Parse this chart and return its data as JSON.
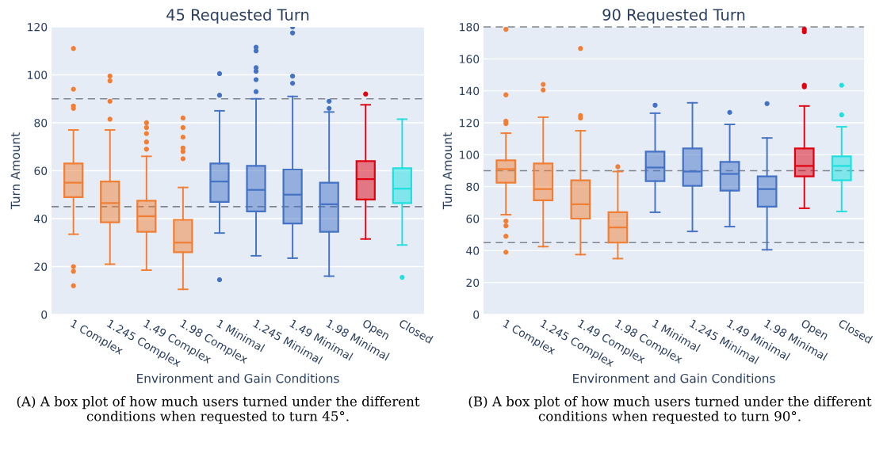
{
  "chart_data": [
    {
      "type": "box",
      "title": "45 Requested Turn",
      "xlabel": "Environment and Gain Conditions",
      "ylabel": "Turn Amount",
      "categories": [
        "1 Complex",
        "1.245 Complex",
        "1.49 Complex",
        "1.98 Complex",
        "1 Minimal",
        "1.245 Minimal",
        "1.49 Minimal",
        "1.98 Minimal",
        "Open",
        "Closed"
      ],
      "colors": [
        "#f07f35",
        "#f07f35",
        "#f07f35",
        "#f07f35",
        "#4472c4",
        "#4472c4",
        "#4472c4",
        "#4472c4",
        "#e00010",
        "#1ee0e0"
      ],
      "boxes": [
        {
          "low": 33.5,
          "q1": 49,
          "median": 55,
          "q3": 63,
          "high": 77,
          "outliers": [
            111,
            94,
            87,
            86,
            20,
            18,
            12
          ]
        },
        {
          "low": 21,
          "q1": 38.5,
          "median": 46.5,
          "q3": 55.5,
          "high": 77,
          "outliers": [
            99.5,
            97.5,
            89,
            81.5
          ]
        },
        {
          "low": 18.5,
          "q1": 34.5,
          "median": 41,
          "q3": 47.5,
          "high": 66,
          "outliers": [
            80,
            78,
            75.5,
            72,
            69
          ]
        },
        {
          "low": 10.5,
          "q1": 26,
          "median": 30,
          "q3": 39.5,
          "high": 53,
          "outliers": [
            82,
            78,
            74,
            69.5,
            68,
            65
          ]
        },
        {
          "low": 34,
          "q1": 47,
          "median": 55.5,
          "q3": 63,
          "high": 85,
          "outliers": [
            100.5,
            91.5,
            14.5
          ]
        },
        {
          "low": 24.5,
          "q1": 43,
          "median": 52,
          "q3": 62,
          "high": 90,
          "outliers": [
            111.5,
            110,
            103,
            101.5,
            98,
            93
          ]
        },
        {
          "low": 23.5,
          "q1": 38,
          "median": 50,
          "q3": 60.5,
          "high": 91,
          "outliers": [
            120,
            117.5,
            99.5,
            96.5
          ]
        },
        {
          "low": 16,
          "q1": 34.5,
          "median": 46,
          "q3": 55,
          "high": 84.5,
          "outliers": [
            89,
            86
          ]
        },
        {
          "low": 31.5,
          "q1": 48,
          "median": 56.5,
          "q3": 64,
          "high": 87.5,
          "outliers": [
            92
          ]
        },
        {
          "low": 29,
          "q1": 46.5,
          "median": 52.5,
          "q3": 61,
          "high": 81.5,
          "outliers": [
            15.5
          ]
        }
      ],
      "ylim": [
        0,
        120
      ],
      "yticks": [
        0,
        20,
        40,
        60,
        80,
        100,
        120
      ],
      "grid": "y",
      "ref_lines": [
        {
          "axis": "y",
          "value": 45,
          "color": "#7f8590",
          "line_style": "dashed"
        },
        {
          "axis": "y",
          "value": 90,
          "color": "#7f8590",
          "line_style": "dashed"
        }
      ],
      "annotations": [
        "(A) A box plot of how much users turned under the different conditions when requested to turn 45°."
      ]
    },
    {
      "type": "box",
      "title": "90 Requested Turn",
      "xlabel": "Environment and Gain Conditions",
      "ylabel": "Turn Amount",
      "categories": [
        "1 Complex",
        "1.245 Complex",
        "1.49 Complex",
        "1.98 Complex",
        "1 Minimal",
        "1.245 Minimal",
        "1.49 Minimal",
        "1.98 Minimal",
        "Open",
        "Closed"
      ],
      "colors": [
        "#f07f35",
        "#f07f35",
        "#f07f35",
        "#f07f35",
        "#4472c4",
        "#4472c4",
        "#4472c4",
        "#4472c4",
        "#e00010",
        "#1ee0e0"
      ],
      "boxes": [
        {
          "low": 62.5,
          "q1": 82.5,
          "median": 91,
          "q3": 96.5,
          "high": 113.5,
          "outliers": [
            178.5,
            137.5,
            121,
            119.5,
            58.5,
            55.5,
            49,
            39
          ]
        },
        {
          "low": 42.5,
          "q1": 71.5,
          "median": 78.5,
          "q3": 94.5,
          "high": 123.5,
          "outliers": [
            144,
            140.5
          ]
        },
        {
          "low": 37.5,
          "q1": 60,
          "median": 69,
          "q3": 84,
          "high": 115,
          "outliers": [
            166.5,
            124.5,
            123
          ]
        },
        {
          "low": 35,
          "q1": 45,
          "median": 54.5,
          "q3": 64,
          "high": 89.5,
          "outliers": [
            92.5
          ]
        },
        {
          "low": 64,
          "q1": 83.5,
          "median": 92,
          "q3": 102,
          "high": 126,
          "outliers": [
            131
          ]
        },
        {
          "low": 52,
          "q1": 80.5,
          "median": 89.5,
          "q3": 104,
          "high": 132.5
        },
        {
          "low": 55,
          "q1": 77.5,
          "median": 88,
          "q3": 95.5,
          "high": 119,
          "outliers": [
            126.5
          ]
        },
        {
          "low": 40.5,
          "q1": 67.5,
          "median": 78.5,
          "q3": 86.5,
          "high": 110.5,
          "outliers": [
            132
          ]
        },
        {
          "low": 66.5,
          "q1": 86.5,
          "median": 93,
          "q3": 104,
          "high": 130.5,
          "outliers": [
            178.5,
            177,
            143.5,
            142.5
          ]
        },
        {
          "low": 64.5,
          "q1": 84,
          "median": 93,
          "q3": 99,
          "high": 117.5,
          "outliers": [
            143.5,
            125
          ]
        }
      ],
      "ylim": [
        0,
        180
      ],
      "yticks": [
        0,
        20,
        40,
        60,
        80,
        100,
        120,
        140,
        160,
        180
      ],
      "grid": "y",
      "ref_lines": [
        {
          "axis": "y",
          "value": 45,
          "color": "#7f8590",
          "line_style": "dashed"
        },
        {
          "axis": "y",
          "value": 90,
          "color": "#7f8590",
          "line_style": "dashed"
        },
        {
          "axis": "y",
          "value": 180,
          "color": "#7f8590",
          "line_style": "dashed"
        }
      ],
      "annotations": [
        "(B) A box plot of how much users turned under the different conditions when requested to turn 90°."
      ]
    }
  ]
}
